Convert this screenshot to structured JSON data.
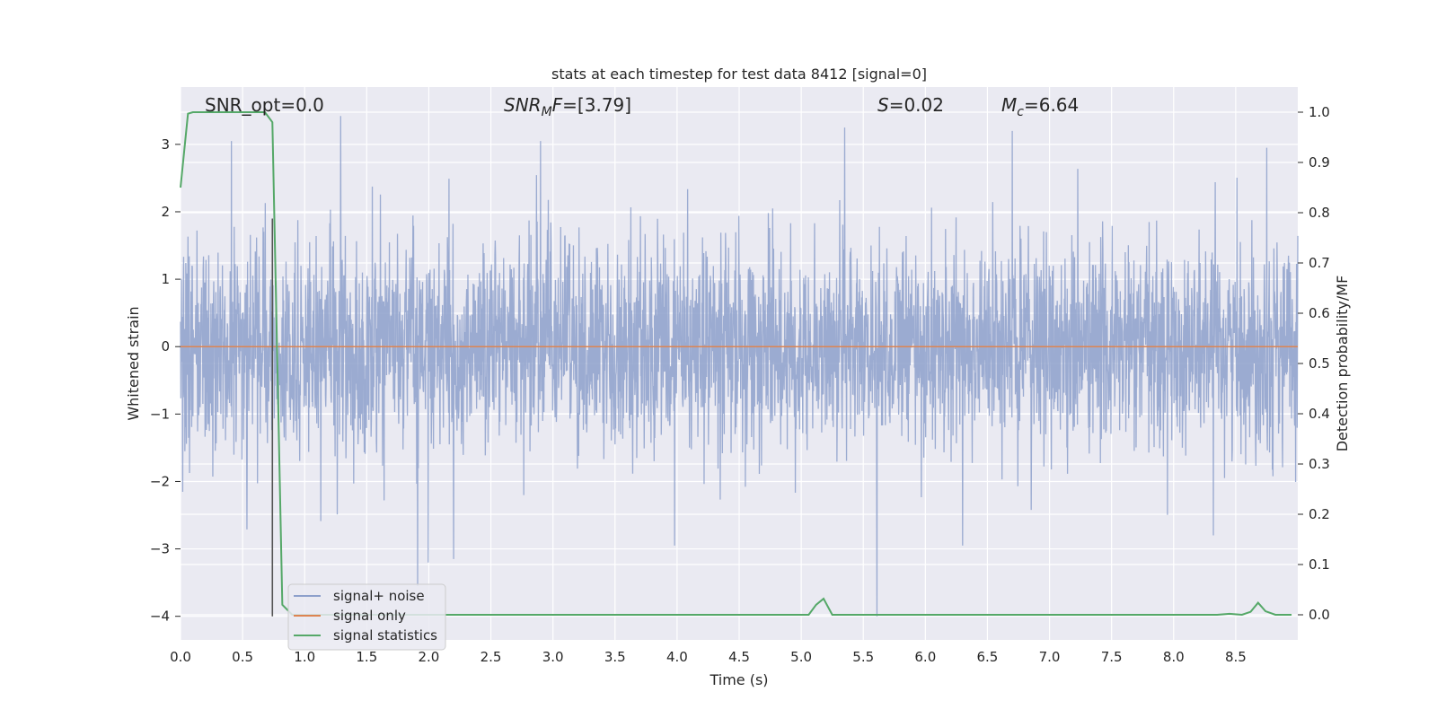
{
  "chart_data": {
    "type": "line",
    "title": "stats at each timestep for test data 8412 [signal=0]",
    "xlabel": "Time (s)",
    "ylabel_left": "Whitened strain",
    "ylabel_right": "Detection probability/MF",
    "xlim": [
      0.0,
      9.0
    ],
    "ylim_left": [
      -4.35,
      3.85
    ],
    "ylim_right": [
      -0.05,
      1.05
    ],
    "xticks": [
      0.0,
      0.5,
      1.0,
      1.5,
      2.0,
      2.5,
      3.0,
      3.5,
      4.0,
      4.5,
      5.0,
      5.5,
      6.0,
      6.5,
      7.0,
      7.5,
      8.0,
      8.5
    ],
    "xtick_labels": [
      "0.0",
      "0.5",
      "1.0",
      "1.5",
      "2.0",
      "2.5",
      "3.0",
      "3.5",
      "4.0",
      "4.5",
      "5.0",
      "5.5",
      "6.0",
      "6.5",
      "7.0",
      "7.5",
      "8.0",
      "8.5"
    ],
    "yticks_left": [
      -4,
      -3,
      -2,
      -1,
      0,
      1,
      2,
      3
    ],
    "ytick_labels_left": [
      "−4",
      "−3",
      "−2",
      "−1",
      "0",
      "1",
      "2",
      "3"
    ],
    "yticks_right": [
      0.0,
      0.1,
      0.2,
      0.3,
      0.4,
      0.5,
      0.6,
      0.7,
      0.8,
      0.9,
      1.0
    ],
    "ytick_labels_right": [
      "0.0",
      "0.1",
      "0.2",
      "0.3",
      "0.4",
      "0.5",
      "0.6",
      "0.7",
      "0.8",
      "0.9",
      "1.0"
    ],
    "vline": {
      "x": 0.74,
      "y_from": -4.0,
      "y_to": 1.9,
      "color": "#555555"
    },
    "annotations": {
      "snr_opt": "SNR_opt=0.0",
      "snr_mf_prefix": "SNR",
      "snr_mf_sub": "M",
      "snr_mf_mid": "F",
      "snr_mf_value": "=[3.79]",
      "s_label": "S",
      "s_value": "=0.02",
      "mc_label": "M",
      "mc_sub": "c",
      "mc_value": "=6.64"
    },
    "series": [
      {
        "name": "signal+ noise",
        "color": "#8da0cb",
        "kind": "noise",
        "sample_rate": 400,
        "x_range": [
          0.0,
          9.0
        ],
        "sigma": 0.75,
        "clip": [
          -4.0,
          3.45
        ],
        "spikes": [
          {
            "x": 1.29,
            "y": 3.42
          },
          {
            "x": 1.91,
            "y": -3.55
          },
          {
            "x": 5.61,
            "y": -4.0
          },
          {
            "x": 6.7,
            "y": 3.2
          },
          {
            "x": 2.9,
            "y": 3.05
          },
          {
            "x": 5.35,
            "y": 3.25
          },
          {
            "x": 0.41,
            "y": 3.05
          },
          {
            "x": 2.2,
            "y": -3.15
          },
          {
            "x": 3.98,
            "y": -2.95
          },
          {
            "x": 6.3,
            "y": -2.95
          },
          {
            "x": 8.75,
            "y": 2.95
          },
          {
            "x": 8.32,
            "y": -2.8
          }
        ]
      },
      {
        "name": "signal only",
        "color": "#dd8452",
        "kind": "line",
        "x": [
          0.0,
          9.0
        ],
        "y": [
          0.0,
          0.0
        ]
      },
      {
        "name": "signal statistics",
        "color": "#55a868",
        "kind": "line",
        "axis": "right",
        "x": [
          0.0,
          0.06,
          0.1,
          0.2,
          0.3,
          0.4,
          0.5,
          0.6,
          0.68,
          0.74,
          0.82,
          0.9,
          1.0,
          2.0,
          3.0,
          4.0,
          5.0,
          5.06,
          5.12,
          5.18,
          5.25,
          5.3,
          6.0,
          7.0,
          8.0,
          8.35,
          8.45,
          8.55,
          8.62,
          8.68,
          8.74,
          8.82,
          8.95
        ],
        "y": [
          0.85,
          0.997,
          1.0,
          1.0,
          1.0,
          1.0,
          1.0,
          1.0,
          1.0,
          0.98,
          0.02,
          0.0,
          0.0,
          0.0,
          0.0,
          0.0,
          0.0,
          0.0,
          0.02,
          0.032,
          0.0,
          0.0,
          0.0,
          0.0,
          0.0,
          0.0,
          0.002,
          0.0,
          0.006,
          0.024,
          0.007,
          0.0,
          0.0
        ]
      }
    ],
    "legend_position": "lower-left"
  }
}
